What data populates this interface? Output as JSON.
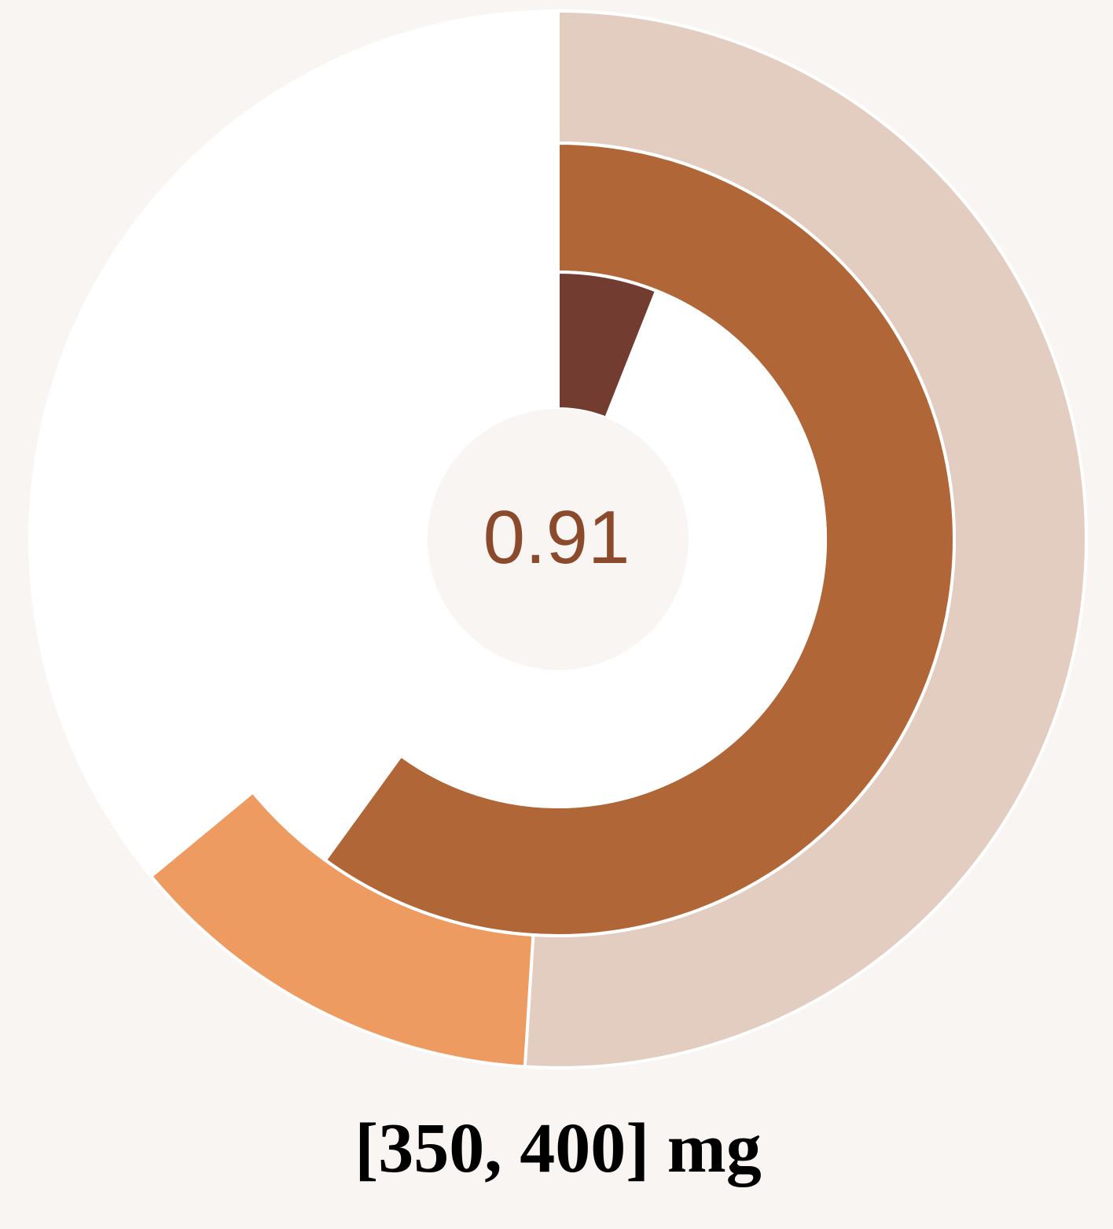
{
  "chart_data": {
    "type": "pie",
    "center_label": "0.91",
    "caption": "[350, 400] mg",
    "rings": [
      {
        "ring": "outer",
        "slices": [
          {
            "value": 0.51,
            "color": "#e2cdc0"
          },
          {
            "value": 0.13,
            "color": "#ee9b62"
          },
          {
            "value": 0.36,
            "color": "#ffffff"
          }
        ]
      },
      {
        "ring": "middle",
        "slices": [
          {
            "value": 0.6,
            "color": "#b06637"
          },
          {
            "value": 0.4,
            "color": "#ffffff"
          }
        ]
      },
      {
        "ring": "inner",
        "slices": [
          {
            "value": 0.06,
            "color": "#733c30"
          },
          {
            "value": 0.94,
            "color": "#ffffff"
          }
        ]
      }
    ]
  }
}
